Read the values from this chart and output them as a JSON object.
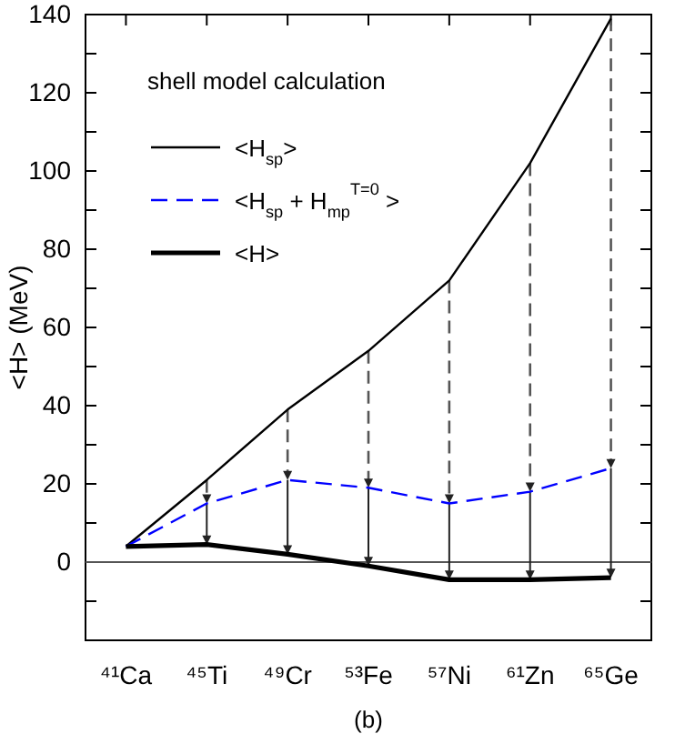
{
  "chart_data": {
    "type": "line",
    "ylabel": "<H>  (MeV)",
    "categories": [
      "⁴¹Ca",
      "⁴⁵Ti",
      "⁴⁹Cr",
      "⁵³Fe",
      "⁵⁷Ni",
      "⁶¹Zn",
      "⁶⁵Ge"
    ],
    "series": [
      {
        "name": "<H$_{sp}$>",
        "color": "#000000",
        "line_style": "solid",
        "values": [
          4,
          21,
          39,
          54,
          72,
          102,
          139
        ]
      },
      {
        "name": "<H$_{sp}$ + H$_{mp}$$^{T=0}$ >",
        "color": "#0000ff",
        "line_style": "dashed",
        "values": [
          4,
          15,
          21,
          19,
          15,
          18,
          24
        ]
      },
      {
        "name": "<H>",
        "color": "#000000",
        "line_style": "solid",
        "values": [
          4,
          4.5,
          2,
          -1,
          -4.5,
          -4.5,
          -4
        ]
      }
    ],
    "ylim": [
      -20,
      140
    ],
    "yticks": [
      {
        "value": -10,
        "label": null
      },
      0,
      {
        "value": 10,
        "label": null
      },
      20,
      {
        "value": 30,
        "label": null
      },
      40,
      {
        "value": 50,
        "label": null
      },
      60,
      {
        "value": 70,
        "label": null
      },
      80,
      {
        "value": 90,
        "label": null
      },
      100,
      {
        "value": 110,
        "label": null
      },
      120,
      {
        "value": 130,
        "label": null
      },
      140
    ],
    "ref_lines": [
      {
        "axis": "y",
        "value": 0,
        "color": "#555555"
      }
    ],
    "legend": "top left",
    "grid": false,
    "marker": "none",
    "annotations": [
      "shell model calculation",
      "(b)"
    ]
  }
}
